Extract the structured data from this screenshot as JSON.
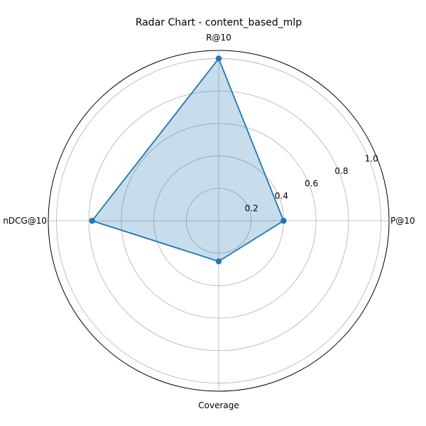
{
  "chart_data": {
    "type": "radar",
    "title": "Radar Chart - content_based_mlp",
    "categories": [
      "P@10",
      "R@10",
      "nDCG@10",
      "Coverage"
    ],
    "series": [
      {
        "values": [
          0.4,
          1.0,
          0.78,
          0.25
        ],
        "color": "#1f77b4",
        "fill_color": "#1f77b4",
        "fill_opacity": 0.25
      }
    ],
    "rlim": [
      0,
      1.05
    ],
    "radial_ticks": [
      0.2,
      0.4,
      0.6,
      0.8,
      1.0
    ],
    "radial_tick_labels": [
      "0.2",
      "0.4",
      "0.6",
      "0.8",
      "1.0"
    ],
    "grid": true
  }
}
